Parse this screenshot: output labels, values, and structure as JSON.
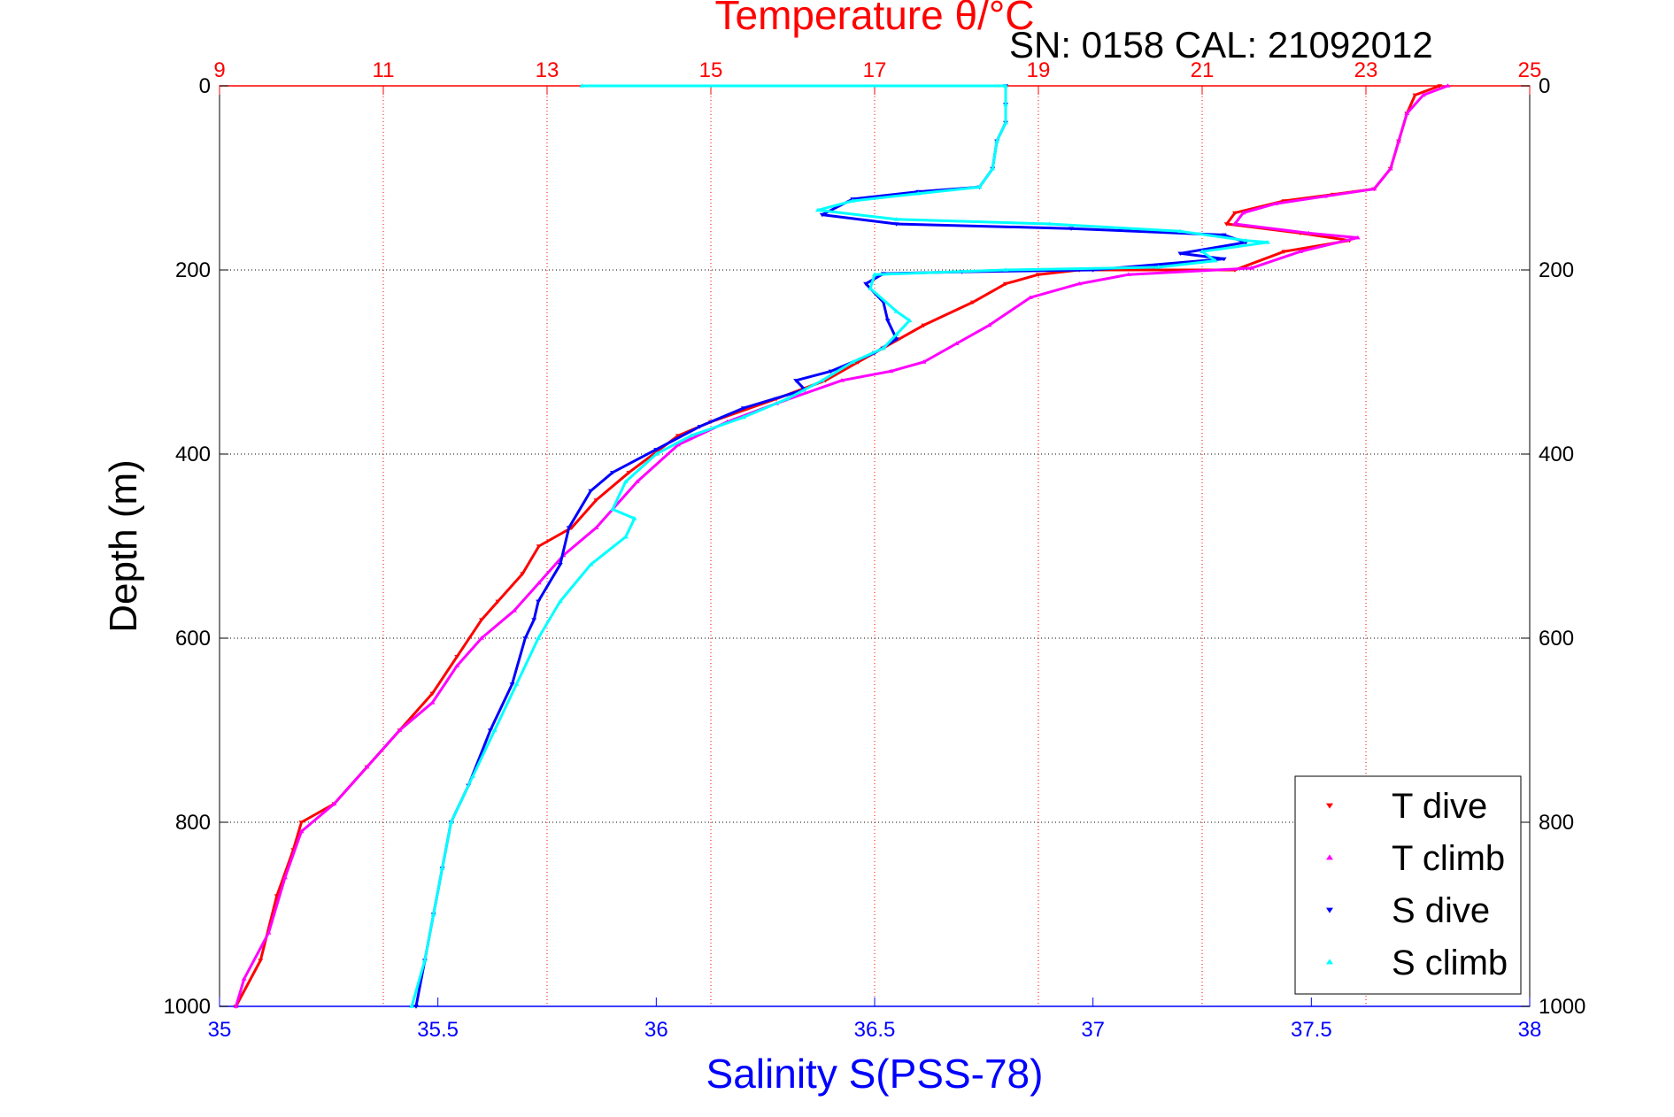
{
  "chart_data": {
    "type": "scatter",
    "title_top": "Temperature θ/°C",
    "subtitle": "SN: 0158  CAL: 21092012",
    "xlabel": "Salinity S(PSS-78)",
    "ylabel": "Depth (m)",
    "x_bottom": {
      "lim": [
        35,
        38
      ],
      "ticks": [
        "35",
        "35.5",
        "36",
        "36.5",
        "37",
        "37.5",
        "38"
      ],
      "color": "#0000ff"
    },
    "x_top": {
      "lim": [
        9,
        25
      ],
      "ticks": [
        "9",
        "11",
        "13",
        "15",
        "17",
        "19",
        "21",
        "23",
        "25"
      ],
      "color": "#ff0000"
    },
    "y": {
      "lim": [
        0,
        1000
      ],
      "reversed": true,
      "ticks": [
        "0",
        "200",
        "400",
        "600",
        "800",
        "1000"
      ]
    },
    "grid": {
      "x_top": true,
      "y": true
    },
    "legend": {
      "position": "bottom-right"
    },
    "series": [
      {
        "name": "T dive",
        "axis": "top",
        "color": "#ff0000",
        "marker": "triangle-down",
        "points": [
          [
            23.9,
            0
          ],
          [
            23.6,
            10
          ],
          [
            23.5,
            30
          ],
          [
            23.4,
            60
          ],
          [
            23.3,
            90
          ],
          [
            23.1,
            112
          ],
          [
            22.6,
            118
          ],
          [
            22.0,
            125
          ],
          [
            21.4,
            138
          ],
          [
            21.3,
            150
          ],
          [
            22.2,
            160
          ],
          [
            22.8,
            168
          ],
          [
            22.0,
            180
          ],
          [
            21.4,
            200
          ],
          [
            19.5,
            200
          ],
          [
            19.0,
            205
          ],
          [
            18.6,
            215
          ],
          [
            18.2,
            235
          ],
          [
            17.6,
            260
          ],
          [
            17.1,
            285
          ],
          [
            16.8,
            300
          ],
          [
            16.4,
            320
          ],
          [
            15.8,
            340
          ],
          [
            15.0,
            365
          ],
          [
            14.6,
            380
          ],
          [
            14.0,
            420
          ],
          [
            13.6,
            450
          ],
          [
            13.3,
            480
          ],
          [
            12.9,
            500
          ],
          [
            12.7,
            530
          ],
          [
            12.4,
            560
          ],
          [
            12.2,
            580
          ],
          [
            11.9,
            620
          ],
          [
            11.6,
            660
          ],
          [
            11.2,
            700
          ],
          [
            10.8,
            740
          ],
          [
            10.4,
            780
          ],
          [
            10.0,
            800
          ],
          [
            9.9,
            830
          ],
          [
            9.7,
            880
          ],
          [
            9.5,
            950
          ],
          [
            9.2,
            1000
          ]
        ]
      },
      {
        "name": "T climb",
        "axis": "top",
        "color": "#ff00ff",
        "marker": "triangle-up",
        "points": [
          [
            24.0,
            0
          ],
          [
            23.7,
            10
          ],
          [
            23.5,
            30
          ],
          [
            23.4,
            60
          ],
          [
            23.3,
            90
          ],
          [
            23.1,
            112
          ],
          [
            22.5,
            120
          ],
          [
            21.9,
            128
          ],
          [
            21.5,
            138
          ],
          [
            21.4,
            150
          ],
          [
            22.3,
            160
          ],
          [
            22.9,
            165
          ],
          [
            22.2,
            180
          ],
          [
            21.6,
            198
          ],
          [
            20.1,
            205
          ],
          [
            19.5,
            215
          ],
          [
            18.9,
            230
          ],
          [
            18.4,
            260
          ],
          [
            18.0,
            280
          ],
          [
            17.6,
            300
          ],
          [
            17.2,
            310
          ],
          [
            16.6,
            320
          ],
          [
            15.8,
            345
          ],
          [
            15.2,
            365
          ],
          [
            14.6,
            390
          ],
          [
            14.1,
            430
          ],
          [
            13.8,
            460
          ],
          [
            13.6,
            480
          ],
          [
            13.2,
            510
          ],
          [
            12.9,
            540
          ],
          [
            12.6,
            570
          ],
          [
            12.2,
            600
          ],
          [
            11.9,
            630
          ],
          [
            11.6,
            670
          ],
          [
            11.2,
            700
          ],
          [
            10.8,
            740
          ],
          [
            10.4,
            780
          ],
          [
            10.0,
            810
          ],
          [
            9.8,
            860
          ],
          [
            9.6,
            920
          ],
          [
            9.3,
            970
          ],
          [
            9.2,
            1000
          ]
        ]
      },
      {
        "name": "S dive",
        "axis": "bottom",
        "color": "#0000ff",
        "marker": "triangle-down",
        "points": [
          [
            36.8,
            0
          ],
          [
            36.8,
            20
          ],
          [
            36.8,
            40
          ],
          [
            36.78,
            60
          ],
          [
            36.77,
            90
          ],
          [
            36.74,
            110
          ],
          [
            36.6,
            115
          ],
          [
            36.45,
            123
          ],
          [
            36.38,
            140
          ],
          [
            36.55,
            150
          ],
          [
            36.95,
            155
          ],
          [
            37.3,
            162
          ],
          [
            37.35,
            170
          ],
          [
            37.2,
            182
          ],
          [
            37.3,
            188
          ],
          [
            37.0,
            200
          ],
          [
            36.7,
            202
          ],
          [
            36.52,
            204
          ],
          [
            36.48,
            215
          ],
          [
            36.52,
            235
          ],
          [
            36.53,
            255
          ],
          [
            36.55,
            275
          ],
          [
            36.5,
            290
          ],
          [
            36.4,
            310
          ],
          [
            36.32,
            320
          ],
          [
            36.34,
            330
          ],
          [
            36.2,
            350
          ],
          [
            36.1,
            370
          ],
          [
            36.0,
            395
          ],
          [
            35.9,
            420
          ],
          [
            35.85,
            440
          ],
          [
            35.8,
            480
          ],
          [
            35.78,
            520
          ],
          [
            35.73,
            560
          ],
          [
            35.72,
            580
          ],
          [
            35.7,
            600
          ],
          [
            35.67,
            650
          ],
          [
            35.62,
            700
          ],
          [
            35.57,
            760
          ],
          [
            35.53,
            800
          ],
          [
            35.51,
            850
          ],
          [
            35.49,
            900
          ],
          [
            35.47,
            950
          ],
          [
            35.45,
            1000
          ]
        ]
      },
      {
        "name": "S climb",
        "axis": "bottom",
        "color": "#00ffff",
        "marker": "triangle-up",
        "points": [
          [
            35.83,
            0
          ],
          [
            36.8,
            0
          ],
          [
            36.8,
            20
          ],
          [
            36.8,
            40
          ],
          [
            36.78,
            60
          ],
          [
            36.77,
            90
          ],
          [
            36.74,
            110
          ],
          [
            36.6,
            117
          ],
          [
            36.45,
            125
          ],
          [
            36.37,
            135
          ],
          [
            36.55,
            145
          ],
          [
            36.9,
            150
          ],
          [
            37.2,
            158
          ],
          [
            37.35,
            168
          ],
          [
            37.4,
            170
          ],
          [
            37.25,
            180
          ],
          [
            37.28,
            190
          ],
          [
            37.15,
            197
          ],
          [
            36.8,
            200
          ],
          [
            36.5,
            205
          ],
          [
            36.49,
            220
          ],
          [
            36.55,
            245
          ],
          [
            36.58,
            255
          ],
          [
            36.55,
            270
          ],
          [
            36.52,
            285
          ],
          [
            36.45,
            300
          ],
          [
            36.38,
            320
          ],
          [
            36.3,
            340
          ],
          [
            36.2,
            360
          ],
          [
            36.08,
            380
          ],
          [
            36.0,
            400
          ],
          [
            35.93,
            430
          ],
          [
            35.9,
            460
          ],
          [
            35.95,
            470
          ],
          [
            35.93,
            490
          ],
          [
            35.85,
            520
          ],
          [
            35.78,
            560
          ],
          [
            35.73,
            600
          ],
          [
            35.68,
            650
          ],
          [
            35.63,
            700
          ],
          [
            35.58,
            750
          ],
          [
            35.53,
            800
          ],
          [
            35.51,
            850
          ],
          [
            35.49,
            900
          ],
          [
            35.47,
            950
          ],
          [
            35.44,
            1000
          ]
        ]
      }
    ]
  }
}
